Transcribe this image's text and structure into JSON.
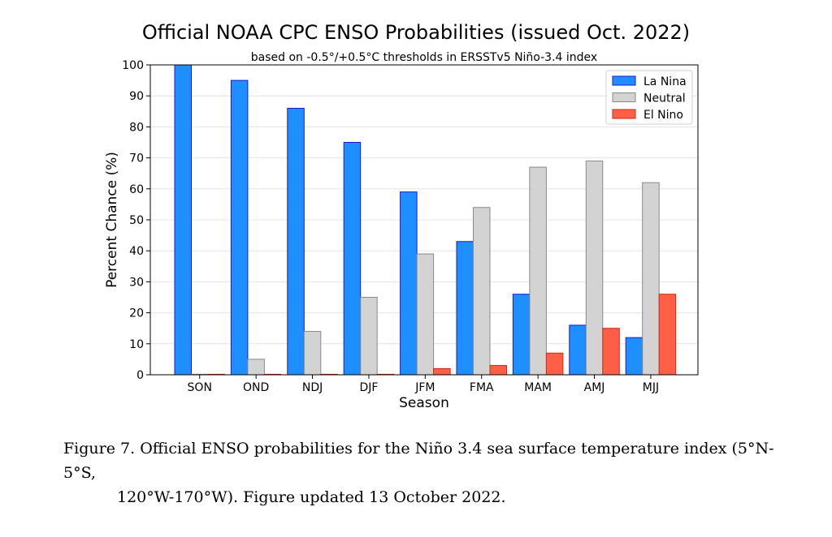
{
  "chart_data": {
    "type": "bar",
    "title": "Official NOAA CPC ENSO Probabilities (issued Oct. 2022)",
    "subtitle": "based on -0.5°/+0.5°C thresholds in ERSSTv5 Niño-3.4 index",
    "xlabel": "Season",
    "ylabel": "Percent Chance (%)",
    "ylim": [
      0,
      100
    ],
    "yticks": [
      0,
      10,
      20,
      30,
      40,
      50,
      60,
      70,
      80,
      90,
      100
    ],
    "grid": true,
    "legend_position": "top-right",
    "categories": [
      "SON",
      "OND",
      "NDJ",
      "DJF",
      "JFM",
      "FMA",
      "MAM",
      "AMJ",
      "MJJ"
    ],
    "series": [
      {
        "name": "La Nina",
        "color": "#1f8fff",
        "edge": "#1a1ad0",
        "values": [
          100,
          95,
          86,
          75,
          59,
          43,
          26,
          16,
          12
        ]
      },
      {
        "name": "Neutral",
        "color": "#d3d3d3",
        "edge": "#8a8a8a",
        "values": [
          0,
          5,
          14,
          25,
          39,
          54,
          67,
          69,
          62
        ]
      },
      {
        "name": "El Nino",
        "color": "#ff5f47",
        "edge": "#d02a10",
        "values": [
          0,
          0,
          0,
          0,
          2,
          3,
          7,
          15,
          26
        ]
      }
    ]
  },
  "caption": {
    "line1": "Figure 7. Official ENSO probabilities for the Niño 3.4 sea surface temperature index (5°N-5°S,",
    "line2": "120°W-170°W). Figure updated 13 October 2022."
  }
}
